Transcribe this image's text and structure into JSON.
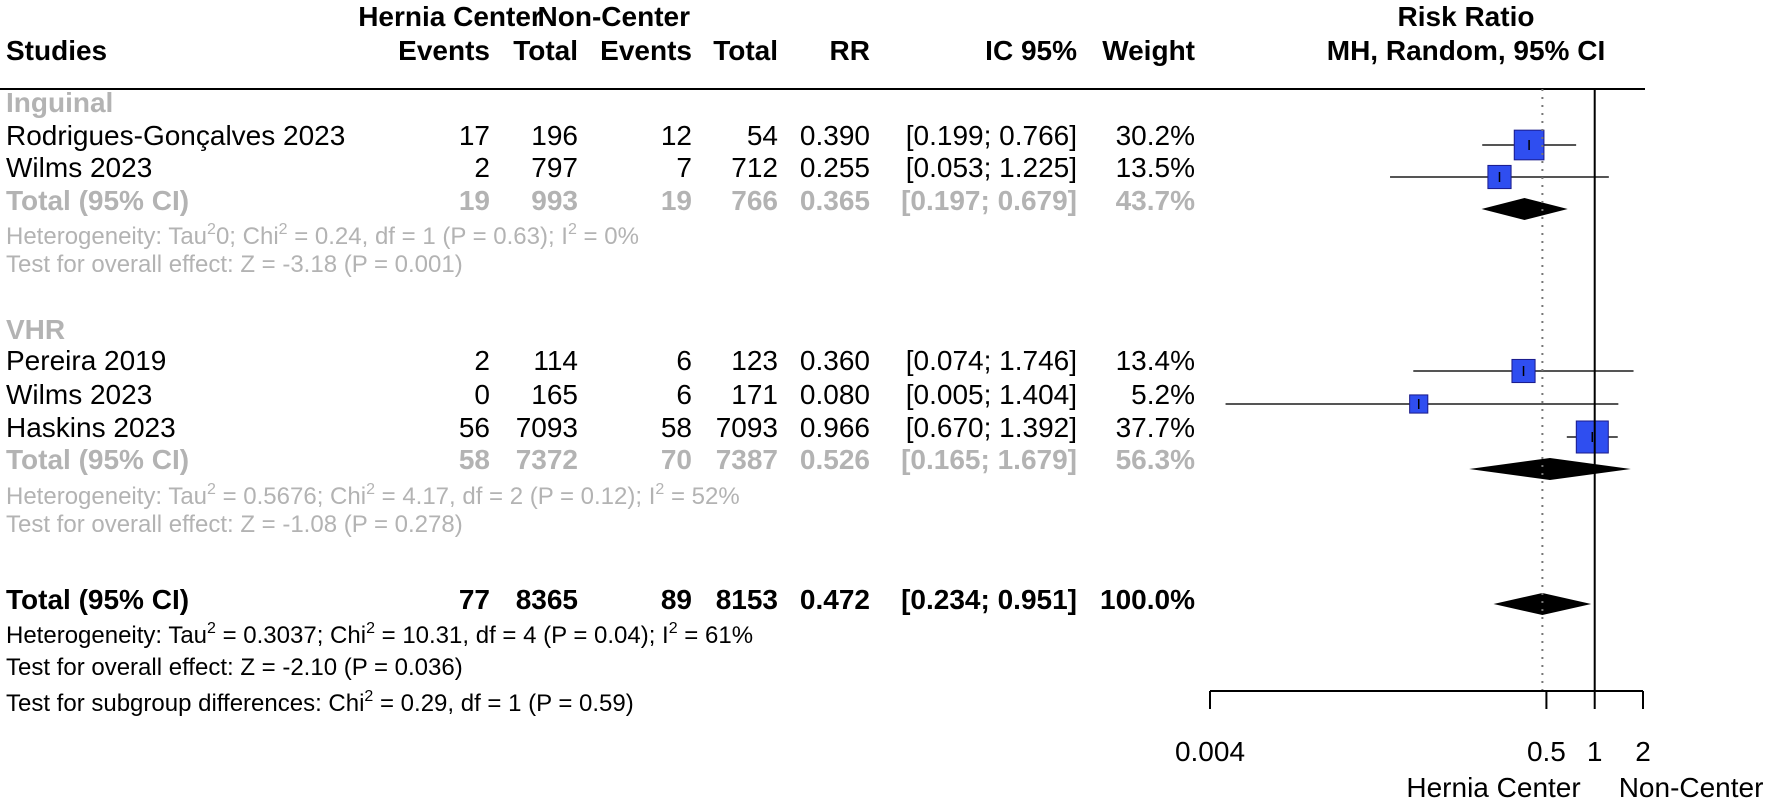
{
  "header": {
    "studies": "Studies",
    "group1": "Hernia Center",
    "group2": "Non-Center",
    "events": "Events",
    "total": "Total",
    "rr": "RR",
    "ci": "IC 95%",
    "weight": "Weight",
    "plot_title_1": "Risk Ratio",
    "plot_title_2": "MH, Random, 95% CI"
  },
  "subgroups": [
    {
      "name": "Inguinal",
      "studies": [
        {
          "study": "Rodrigues-Gonçalves 2023",
          "e1": "17",
          "n1": "196",
          "e2": "12",
          "n2": "54",
          "rr": "0.390",
          "ci": "[0.199; 0.766]",
          "weight": "30.2%"
        },
        {
          "study": "Wilms 2023",
          "e1": "2",
          "n1": "797",
          "e2": "7",
          "n2": "712",
          "rr": "0.255",
          "ci": "[0.053; 1.225]",
          "weight": "13.5%"
        }
      ],
      "total": {
        "study": "Total (95% CI)",
        "e1": "19",
        "n1": "993",
        "e2": "19",
        "n2": "766",
        "rr": "0.365",
        "ci": "[0.197; 0.679]",
        "weight": "43.7%"
      },
      "heterogeneity": {
        "prefix": "Heterogeneity: Tau",
        "tau2": "0",
        "mid": "; Chi",
        "chi2": " = 0.24, df = 1 (P = 0.63); I",
        "i2": " = 0%"
      },
      "overall_effect": "Test for overall effect: Z = -3.18 (P = 0.001)"
    },
    {
      "name": "VHR",
      "studies": [
        {
          "study": "Pereira 2019",
          "e1": "2",
          "n1": "114",
          "e2": "6",
          "n2": "123",
          "rr": "0.360",
          "ci": "[0.074; 1.746]",
          "weight": "13.4%"
        },
        {
          "study": "Wilms 2023",
          "e1": "0",
          "n1": "165",
          "e2": "6",
          "n2": "171",
          "rr": "0.080",
          "ci": "[0.005; 1.404]",
          "weight": "5.2%"
        },
        {
          "study": "Haskins 2023",
          "e1": "56",
          "n1": "7093",
          "e2": "58",
          "n2": "7093",
          "rr": "0.966",
          "ci": "[0.670; 1.392]",
          "weight": "37.7%"
        }
      ],
      "total": {
        "study": "Total (95% CI)",
        "e1": "58",
        "n1": "7372",
        "e2": "70",
        "n2": "7387",
        "rr": "0.526",
        "ci": "[0.165; 1.679]",
        "weight": "56.3%"
      },
      "heterogeneity": {
        "prefix": "Heterogeneity: Tau",
        "tau2": " = 0.5676",
        "mid": "; Chi",
        "chi2": " = 4.17, df = 2 (P = 0.12); I",
        "i2": " = 52%"
      },
      "overall_effect": "Test for overall effect: Z = -1.08 (P = 0.278)"
    }
  ],
  "overall": {
    "total": {
      "study": "Total (95% CI)",
      "e1": "77",
      "n1": "8365",
      "e2": "89",
      "n2": "8153",
      "rr": "0.472",
      "ci": "[0.234; 0.951]",
      "weight": "100.0%"
    },
    "heterogeneity": {
      "prefix": "Heterogeneity: Tau",
      "tau2": " = 0.3037",
      "mid": "; Chi",
      "chi2": " = 10.31, df = 4 (P = 0.04); I",
      "i2": " = 61%"
    },
    "overall_effect": "Test for overall effect: Z = -2.10 (P = 0.036)",
    "subgroup_diff_prefix": "Test for subgroup differences: Chi",
    "subgroup_diff_rest": " = 0.29, df = 1 (P = 0.59)"
  },
  "axis": {
    "ticks": [
      0.004,
      0.5,
      1,
      2
    ],
    "tick_labels": [
      "0.004",
      "0.5",
      "1",
      "2"
    ],
    "label_left": "Hernia Center",
    "label_right": "Non-Center"
  },
  "colors": {
    "square": "#2f4ef0",
    "diamond": "#000000",
    "muted": "#b3b3b3"
  },
  "chart_data": {
    "type": "forest",
    "scale": "log",
    "xlim": [
      0.004,
      2
    ],
    "reference_line": 1,
    "pooled_reference_line": 0.472,
    "studies": [
      {
        "group": "Inguinal",
        "study": "Rodrigues-Gonçalves 2023",
        "rr": 0.39,
        "lower": 0.199,
        "upper": 0.766,
        "weight": 30.2
      },
      {
        "group": "Inguinal",
        "study": "Wilms 2023",
        "rr": 0.255,
        "lower": 0.053,
        "upper": 1.225,
        "weight": 13.5
      },
      {
        "group": "VHR",
        "study": "Pereira 2019",
        "rr": 0.36,
        "lower": 0.074,
        "upper": 1.746,
        "weight": 13.4
      },
      {
        "group": "VHR",
        "study": "Wilms 2023",
        "rr": 0.08,
        "lower": 0.005,
        "upper": 1.404,
        "weight": 5.2
      },
      {
        "group": "VHR",
        "study": "Haskins 2023",
        "rr": 0.966,
        "lower": 0.67,
        "upper": 1.392,
        "weight": 37.7
      }
    ],
    "pooled": [
      {
        "label": "Inguinal total",
        "rr": 0.365,
        "lower": 0.197,
        "upper": 0.679
      },
      {
        "label": "VHR total",
        "rr": 0.526,
        "lower": 0.165,
        "upper": 1.679
      },
      {
        "label": "Overall total",
        "rr": 0.472,
        "lower": 0.234,
        "upper": 0.951
      }
    ]
  }
}
